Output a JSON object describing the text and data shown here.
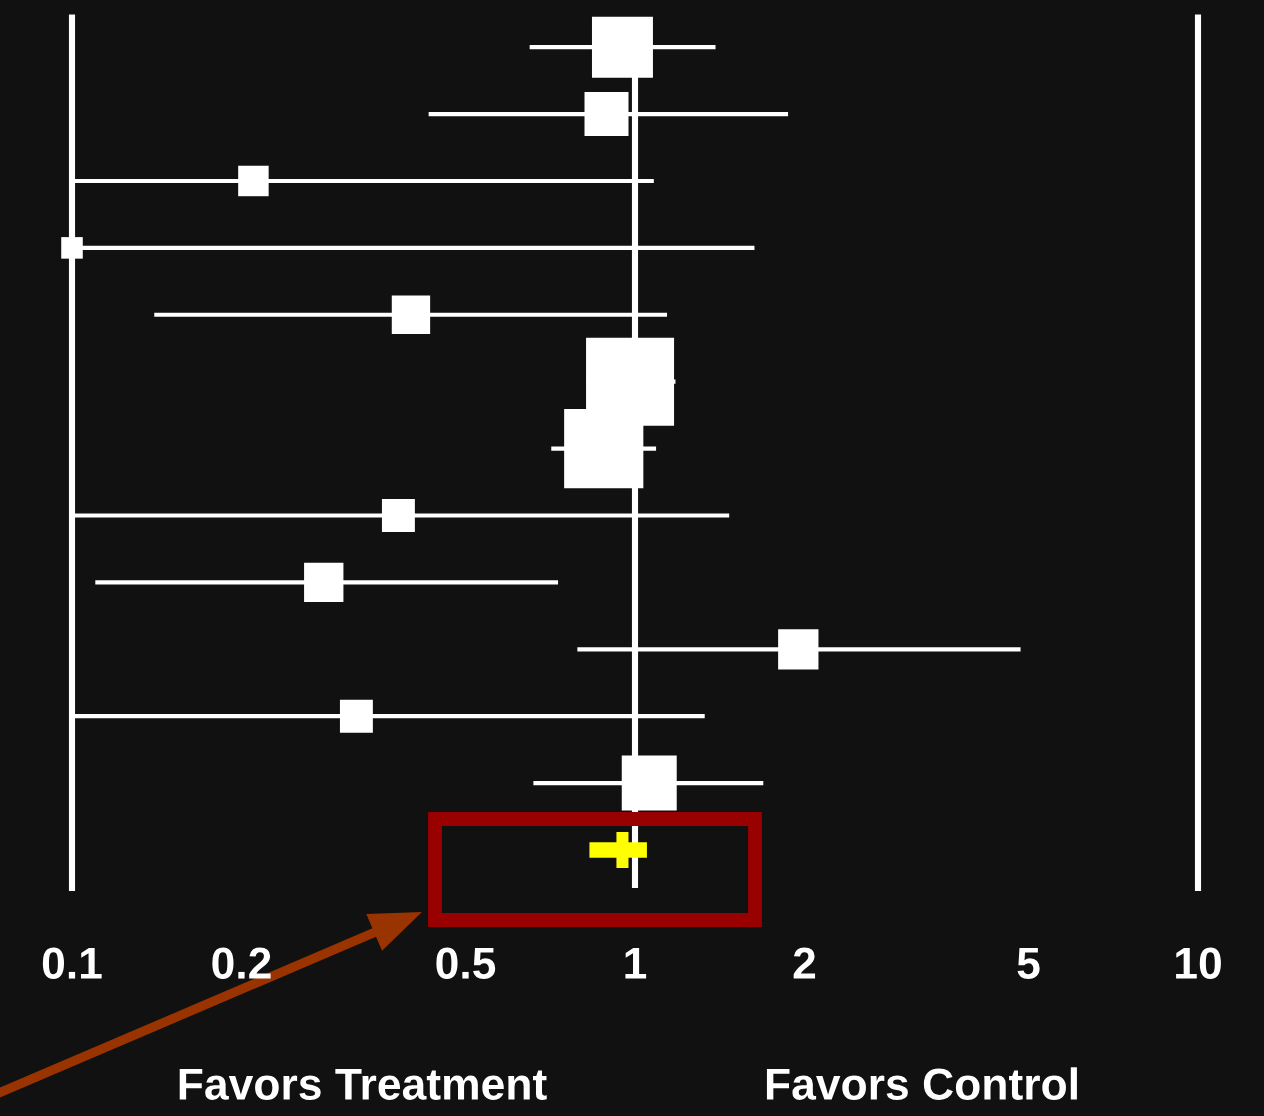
{
  "chart_data": {
    "type": "bubble",
    "orientation": "horizontal",
    "categories": [
      null,
      null,
      null,
      null,
      null,
      null,
      null,
      null,
      null,
      null,
      null,
      null,
      null
    ],
    "series": [
      {
        "color": "#ffffff",
        "marker": "square",
        "values": [
          0.95,
          0.89,
          0.21,
          0.1,
          0.4,
          0.98,
          0.88,
          0.38,
          0.28,
          1.95,
          0.32,
          1.06,
          null
        ],
        "errors": [
          [
            0.65,
            1.39
          ],
          [
            0.43,
            1.87
          ],
          [
            0.1,
            1.08
          ],
          [
            0.1,
            1.63
          ],
          [
            0.14,
            1.14
          ],
          [
            0.82,
            1.18
          ],
          [
            0.71,
            1.09
          ],
          [
            0.1,
            1.47
          ],
          [
            0.11,
            0.73
          ],
          [
            0.79,
            4.84
          ],
          [
            0.1,
            1.33
          ],
          [
            0.66,
            1.69
          ],
          null
        ],
        "sizes": [
          0.48,
          0.25,
          0.12,
          0.06,
          0.19,
          1,
          0.81,
          0.14,
          0.2,
          0.21,
          0.14,
          0.39,
          null
        ]
      },
      {
        "type": "scatter",
        "color": "#ffff00",
        "marker": "cross",
        "values": [
          null,
          null,
          null,
          null,
          null,
          null,
          null,
          null,
          null,
          null,
          null,
          null,
          0.95
        ],
        "errors": [
          null,
          null,
          null,
          null,
          null,
          null,
          null,
          null,
          null,
          null,
          null,
          null,
          [
            0.83,
            1.05
          ]
        ]
      }
    ],
    "log": "x",
    "xlim": [
      0.1,
      10
    ],
    "xticks": [
      0.1,
      0.2,
      0.5,
      1,
      2,
      5,
      10
    ],
    "tick_labels": "x",
    "ref_lines": [
      {
        "axis": "x",
        "value": 1,
        "color": "#ffffff"
      }
    ],
    "annotations": [
      "Favors Treatment",
      "Favors Control"
    ]
  }
}
